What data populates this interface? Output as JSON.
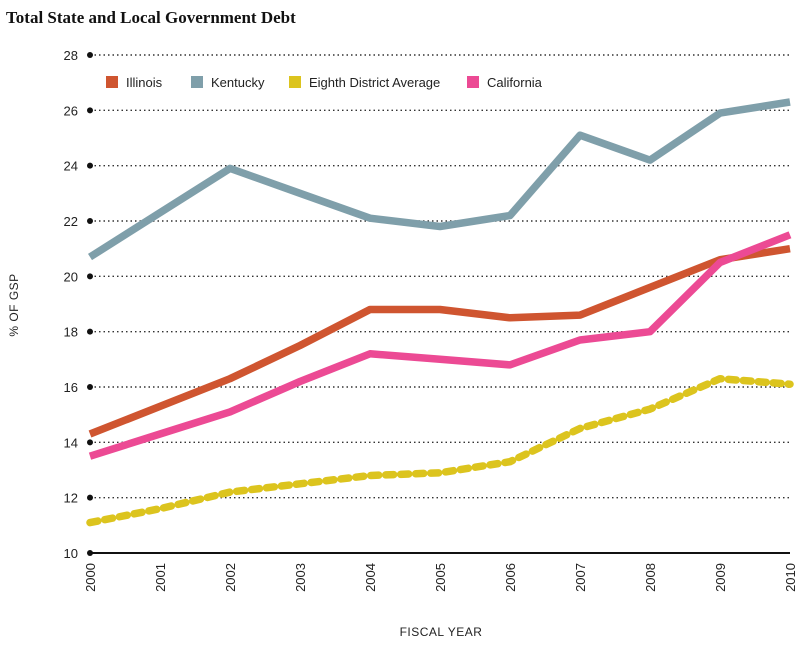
{
  "chart_data": {
    "type": "line",
    "title": "Total State and Local Government Debt",
    "xlabel": "FISCAL YEAR",
    "ylabel": "% OF GSP",
    "x": [
      "2000",
      "2001",
      "2002",
      "2003",
      "2004",
      "2005",
      "2006",
      "2007",
      "2008",
      "2009",
      "2010"
    ],
    "ylim": [
      10,
      28
    ],
    "yticks": [
      "10",
      "12",
      "14",
      "16",
      "18",
      "20",
      "22",
      "24",
      "26",
      "28"
    ],
    "grid": "horizontal dotted",
    "legend_position": "top-left",
    "series": [
      {
        "name": "Illinois",
        "color": "#cf5530",
        "style": "solid",
        "values": [
          14.3,
          15.3,
          16.3,
          17.5,
          18.8,
          18.8,
          18.5,
          18.6,
          19.6,
          20.6,
          21.0
        ]
      },
      {
        "name": "Kentucky",
        "color": "#7f9faa",
        "style": "solid",
        "values": [
          20.7,
          22.3,
          23.9,
          23.0,
          22.1,
          21.8,
          22.2,
          25.1,
          24.2,
          25.9,
          26.3
        ]
      },
      {
        "name": "Eighth District Average",
        "color": "#dcc41e",
        "style": "dotted",
        "values": [
          11.1,
          11.6,
          12.2,
          12.5,
          12.8,
          12.9,
          13.3,
          14.5,
          15.2,
          16.3,
          16.1
        ]
      },
      {
        "name": "California",
        "color": "#ec4a94",
        "style": "solid",
        "values": [
          13.5,
          14.3,
          15.1,
          16.2,
          17.2,
          17.0,
          16.8,
          17.7,
          18.0,
          20.5,
          21.5
        ]
      }
    ]
  }
}
